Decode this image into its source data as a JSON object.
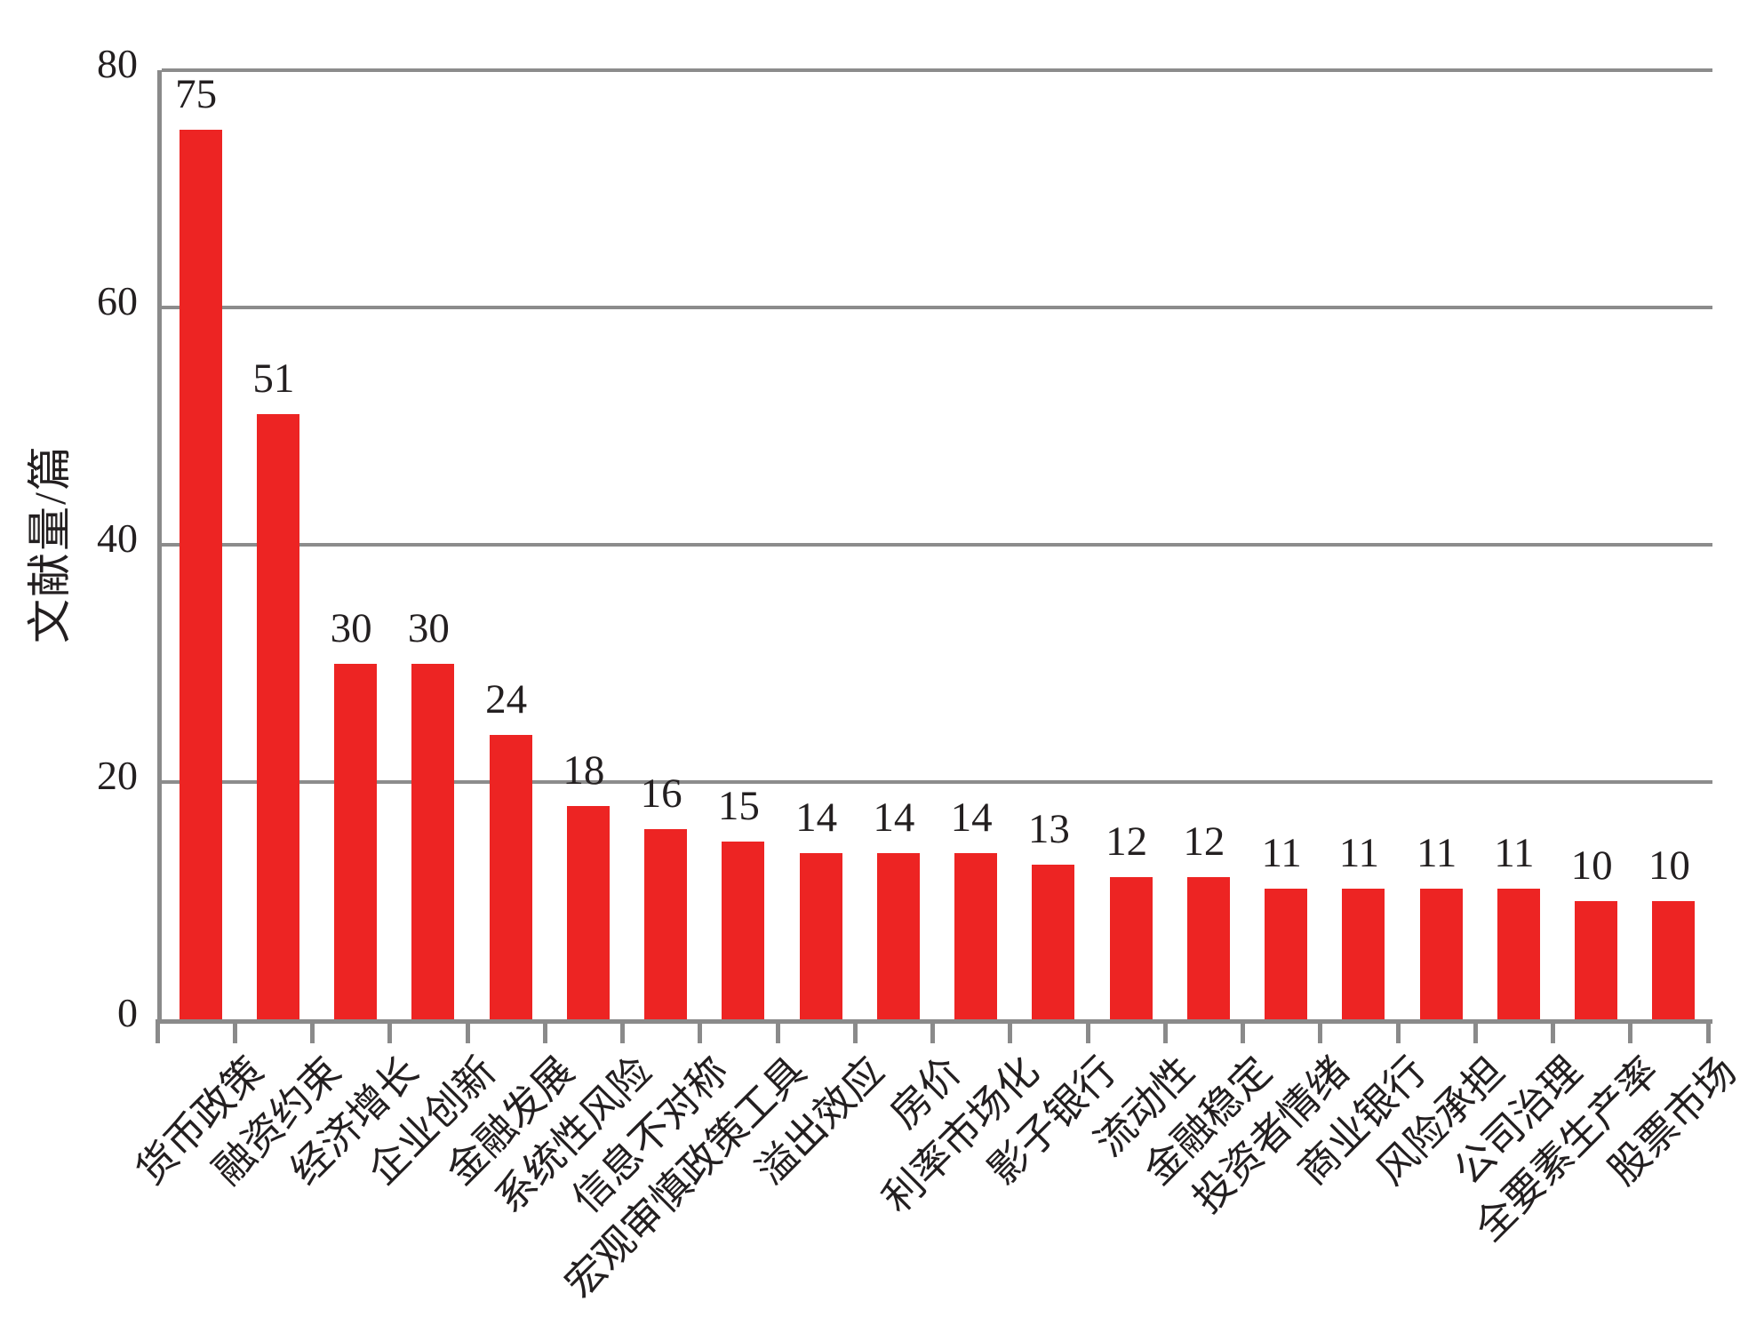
{
  "chart_data": {
    "type": "bar",
    "title": "",
    "xlabel": "",
    "ylabel": "文献量/篇",
    "categories": [
      "货币政策",
      "融资约束",
      "经济增长",
      "企业创新",
      "金融发展",
      "系统性风险",
      "信息不对称",
      "宏观审慎政策工具",
      "溢出效应",
      "房价",
      "利率市场化",
      "影子银行",
      "流动性",
      "金融稳定",
      "投资者情绪",
      "商业银行",
      "风险承担",
      "公司治理",
      "全要素生产率",
      "股票市场"
    ],
    "values": [
      75,
      51,
      30,
      30,
      24,
      18,
      16,
      15,
      14,
      14,
      14,
      13,
      12,
      12,
      11,
      11,
      11,
      11,
      10,
      10
    ],
    "yticks": [
      0,
      20,
      40,
      60,
      80
    ],
    "ylim": [
      0,
      80
    ],
    "grid": "horizontal",
    "legend": "none",
    "bar_label_position": "above",
    "x_label_rotation_deg": 45,
    "colors": {
      "bar": "#ed2423",
      "axis": "#8a8a8a",
      "gridline": "#8c8c8c",
      "text": "#231f20",
      "background": "#ffffff"
    }
  }
}
